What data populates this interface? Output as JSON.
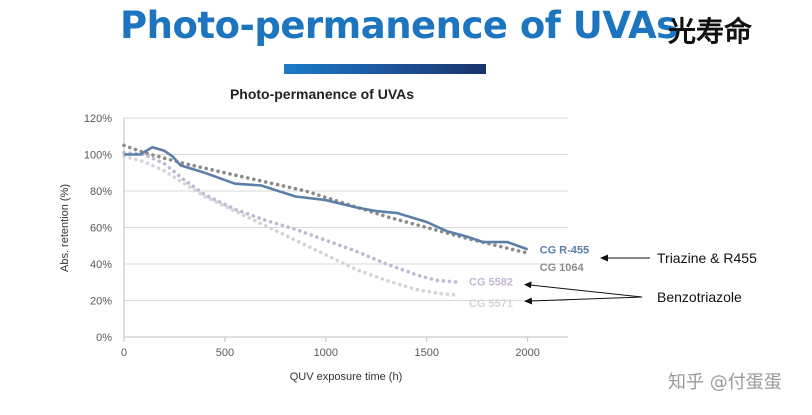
{
  "slide": {
    "title": "Photo-permanence of UVAs",
    "cjk_title": "光寿命",
    "watermark": "知乎 @付蛋蛋"
  },
  "colors": {
    "title_blue": "#1d74bf",
    "cg_r455": "#5b7fa8",
    "cg_1064": "#8c8c8c",
    "cg_5582": "#c3b8d2",
    "cg_5571": "#d4d4d8"
  },
  "chart_data": {
    "type": "line",
    "title": "Photo-permanence of UVAs",
    "xlabel": "QUV exposure time (h)",
    "ylabel": "Abs. retention (%)",
    "xlim": [
      0,
      2200
    ],
    "ylim": [
      0,
      120
    ],
    "x_ticks": [
      0,
      500,
      1000,
      1500,
      2000
    ],
    "y_ticks": [
      0,
      20,
      40,
      60,
      80,
      100,
      120
    ],
    "y_tick_suffix": "%",
    "grid": true,
    "series": [
      {
        "name": "CG R-455",
        "style": "solid",
        "color": "#5b7fa8",
        "points": [
          [
            0,
            100
          ],
          [
            80,
            100
          ],
          [
            140,
            104
          ],
          [
            200,
            102
          ],
          [
            240,
            99
          ],
          [
            280,
            94
          ],
          [
            400,
            90
          ],
          [
            550,
            84
          ],
          [
            680,
            83
          ],
          [
            850,
            77
          ],
          [
            1000,
            75
          ],
          [
            1150,
            71
          ],
          [
            1250,
            69
          ],
          [
            1350,
            68
          ],
          [
            1500,
            63
          ],
          [
            1600,
            58
          ],
          [
            1700,
            55
          ],
          [
            1780,
            52
          ],
          [
            1900,
            52
          ],
          [
            2000,
            48
          ]
        ]
      },
      {
        "name": "CG 1064",
        "style": "dotted",
        "color": "#8c8c8c",
        "points": [
          [
            0,
            105
          ],
          [
            100,
            101
          ],
          [
            200,
            98
          ],
          [
            300,
            95
          ],
          [
            500,
            90
          ],
          [
            700,
            85
          ],
          [
            900,
            80
          ],
          [
            1100,
            73
          ],
          [
            1300,
            66
          ],
          [
            1500,
            60
          ],
          [
            1700,
            54
          ],
          [
            1850,
            50
          ],
          [
            2000,
            46
          ]
        ]
      },
      {
        "name": "CG 5582",
        "style": "dotted",
        "color": "#c3b8d2",
        "points": [
          [
            0,
            101
          ],
          [
            100,
            100
          ],
          [
            200,
            95
          ],
          [
            300,
            86
          ],
          [
            400,
            78
          ],
          [
            550,
            70
          ],
          [
            700,
            64
          ],
          [
            850,
            59
          ],
          [
            1000,
            53
          ],
          [
            1150,
            47
          ],
          [
            1300,
            40
          ],
          [
            1450,
            34
          ],
          [
            1550,
            31
          ],
          [
            1660,
            30
          ]
        ]
      },
      {
        "name": "CG 5571",
        "style": "dotted",
        "color": "#d4d4d8",
        "points": [
          [
            0,
            99
          ],
          [
            100,
            96
          ],
          [
            200,
            91
          ],
          [
            300,
            84
          ],
          [
            400,
            77
          ],
          [
            550,
            69
          ],
          [
            700,
            61
          ],
          [
            850,
            53
          ],
          [
            1000,
            45
          ],
          [
            1150,
            37
          ],
          [
            1300,
            31
          ],
          [
            1450,
            26
          ],
          [
            1550,
            24
          ],
          [
            1650,
            23
          ]
        ]
      }
    ],
    "annotations": [
      {
        "text": "Triazine & R455",
        "targets": [
          "CG R-455 / CG 1064"
        ]
      },
      {
        "text": "Benzotriazole",
        "targets": [
          "CG 5582",
          "CG 5571"
        ]
      }
    ]
  }
}
